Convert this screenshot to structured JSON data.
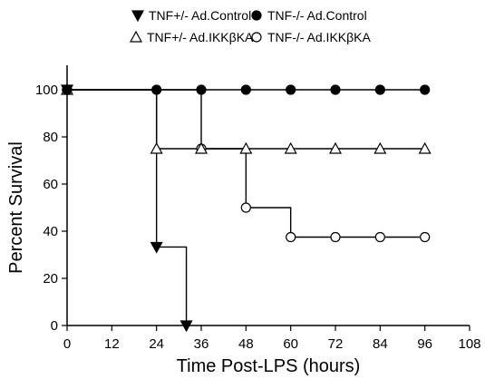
{
  "chart_data": {
    "type": "line",
    "step": true,
    "xlabel": "Time Post-LPS (hours)",
    "ylabel": "Percent Survival",
    "xlim": [
      0,
      108
    ],
    "ylim": [
      0,
      100
    ],
    "x_ticks": [
      0,
      12,
      24,
      36,
      48,
      60,
      72,
      84,
      96,
      108
    ],
    "y_ticks": [
      0,
      20,
      40,
      60,
      80,
      100
    ],
    "grid": false,
    "legend_position": "top",
    "series": [
      {
        "name": "TNF+/- Ad.Control",
        "marker": "filled-down-triangle",
        "x": [
          0,
          24,
          32
        ],
        "y": [
          100,
          33.3,
          0
        ]
      },
      {
        "name": "TNF-/- Ad.Control",
        "marker": "filled-circle",
        "x": [
          0,
          24,
          36,
          48,
          60,
          72,
          84,
          96
        ],
        "y": [
          100,
          100,
          100,
          100,
          100,
          100,
          100,
          100
        ]
      },
      {
        "name": "TNF+/- Ad.IKKβKA",
        "marker": "open-up-triangle",
        "x": [
          0,
          24,
          36,
          48,
          60,
          72,
          84,
          96
        ],
        "y": [
          100,
          75,
          75,
          75,
          75,
          75,
          75,
          75
        ]
      },
      {
        "name": "TNF-/- Ad.IKKβKA",
        "marker": "open-circle",
        "x": [
          0,
          36,
          48,
          60,
          72,
          84,
          96
        ],
        "y": [
          100,
          75,
          50,
          37.5,
          37.5,
          37.5,
          37.5
        ]
      }
    ]
  }
}
